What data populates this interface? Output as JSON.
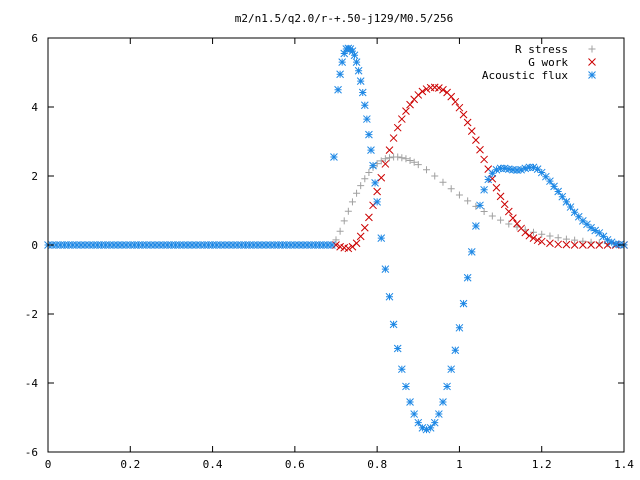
{
  "chart_data": {
    "type": "scatter",
    "title": "m2/n1.5/q2.0/r-+.50-j129/M0.5/256",
    "xlabel": "",
    "ylabel": "",
    "xlim": [
      0,
      1.4
    ],
    "ylim": [
      -6,
      6
    ],
    "xticks": [
      "0",
      "0.2",
      "0.4",
      "0.6",
      "0.8",
      "1",
      "1.2",
      "1.4"
    ],
    "yticks": [
      "6",
      "4",
      "2",
      "0",
      "-2",
      "-4",
      "-6"
    ],
    "grid": false,
    "legend_position": "top-right",
    "series": [
      {
        "name": "R stress",
        "marker": "+",
        "color": "#a0a0a0",
        "x": [
          0.7,
          0.71,
          0.72,
          0.73,
          0.74,
          0.75,
          0.76,
          0.77,
          0.78,
          0.79,
          0.8,
          0.81,
          0.82,
          0.83,
          0.84,
          0.85,
          0.86,
          0.87,
          0.88,
          0.89,
          0.9,
          0.92,
          0.94,
          0.96,
          0.98,
          1.0,
          1.02,
          1.04,
          1.06,
          1.08,
          1.1,
          1.12,
          1.14,
          1.16,
          1.18,
          1.2,
          1.22,
          1.24,
          1.26,
          1.28,
          1.3,
          1.32,
          1.34,
          1.36,
          1.38,
          1.4
        ],
        "y": [
          0.15,
          0.4,
          0.7,
          0.98,
          1.25,
          1.5,
          1.72,
          1.92,
          2.1,
          2.25,
          2.36,
          2.44,
          2.5,
          2.53,
          2.55,
          2.55,
          2.53,
          2.5,
          2.45,
          2.4,
          2.33,
          2.18,
          2.0,
          1.82,
          1.63,
          1.45,
          1.28,
          1.12,
          0.97,
          0.84,
          0.72,
          0.61,
          0.52,
          0.44,
          0.37,
          0.31,
          0.26,
          0.21,
          0.17,
          0.14,
          0.11,
          0.08,
          0.06,
          0.04,
          0.02,
          0.01
        ]
      },
      {
        "name": "G work",
        "marker": "x",
        "color": "#cc0000",
        "x": [
          0.7,
          0.71,
          0.72,
          0.73,
          0.74,
          0.75,
          0.76,
          0.77,
          0.78,
          0.79,
          0.8,
          0.81,
          0.82,
          0.83,
          0.84,
          0.85,
          0.86,
          0.87,
          0.88,
          0.89,
          0.9,
          0.91,
          0.92,
          0.93,
          0.94,
          0.95,
          0.96,
          0.97,
          0.98,
          0.99,
          1.0,
          1.01,
          1.02,
          1.03,
          1.04,
          1.05,
          1.06,
          1.07,
          1.08,
          1.09,
          1.1,
          1.11,
          1.12,
          1.13,
          1.14,
          1.15,
          1.16,
          1.17,
          1.18,
          1.19,
          1.2,
          1.22,
          1.24,
          1.26,
          1.28,
          1.3,
          1.32,
          1.34,
          1.36,
          1.38,
          1.4
        ],
        "y": [
          0.0,
          -0.05,
          -0.08,
          -0.1,
          -0.05,
          0.05,
          0.25,
          0.5,
          0.8,
          1.15,
          1.55,
          1.95,
          2.35,
          2.75,
          3.1,
          3.4,
          3.65,
          3.88,
          4.07,
          4.22,
          4.35,
          4.45,
          4.52,
          4.56,
          4.57,
          4.55,
          4.5,
          4.42,
          4.3,
          4.15,
          3.98,
          3.78,
          3.55,
          3.3,
          3.04,
          2.76,
          2.48,
          2.2,
          1.92,
          1.66,
          1.41,
          1.18,
          0.97,
          0.78,
          0.62,
          0.48,
          0.36,
          0.27,
          0.2,
          0.14,
          0.1,
          0.05,
          0.02,
          0.01,
          0.0,
          0.0,
          0.0,
          0.0,
          0.0,
          0.0,
          0.0
        ]
      },
      {
        "name": "Acoustic flux",
        "marker": "*",
        "color": "#1e88e5",
        "x": [
          0.0,
          0.01,
          0.02,
          0.03,
          0.04,
          0.05,
          0.06,
          0.07,
          0.08,
          0.09,
          0.1,
          0.11,
          0.12,
          0.13,
          0.14,
          0.15,
          0.16,
          0.17,
          0.18,
          0.19,
          0.2,
          0.21,
          0.22,
          0.23,
          0.24,
          0.25,
          0.26,
          0.27,
          0.28,
          0.29,
          0.3,
          0.31,
          0.32,
          0.33,
          0.34,
          0.35,
          0.36,
          0.37,
          0.38,
          0.39,
          0.4,
          0.41,
          0.42,
          0.43,
          0.44,
          0.45,
          0.46,
          0.47,
          0.48,
          0.49,
          0.5,
          0.51,
          0.52,
          0.53,
          0.54,
          0.55,
          0.56,
          0.57,
          0.58,
          0.59,
          0.6,
          0.61,
          0.62,
          0.63,
          0.64,
          0.65,
          0.66,
          0.67,
          0.68,
          0.69,
          0.695,
          0.705,
          0.71,
          0.715,
          0.72,
          0.725,
          0.73,
          0.735,
          0.74,
          0.745,
          0.75,
          0.755,
          0.76,
          0.765,
          0.77,
          0.775,
          0.78,
          0.785,
          0.79,
          0.795,
          0.8,
          0.81,
          0.82,
          0.83,
          0.84,
          0.85,
          0.86,
          0.87,
          0.88,
          0.89,
          0.9,
          0.91,
          0.92,
          0.93,
          0.94,
          0.95,
          0.96,
          0.97,
          0.98,
          0.99,
          1.0,
          1.01,
          1.02,
          1.03,
          1.04,
          1.05,
          1.06,
          1.07,
          1.08,
          1.09,
          1.1,
          1.11,
          1.12,
          1.13,
          1.14,
          1.15,
          1.16,
          1.17,
          1.18,
          1.19,
          1.2,
          1.21,
          1.22,
          1.23,
          1.24,
          1.25,
          1.26,
          1.27,
          1.28,
          1.29,
          1.3,
          1.31,
          1.32,
          1.33,
          1.34,
          1.35,
          1.36,
          1.37,
          1.38,
          1.39,
          1.4
        ],
        "y": [
          0,
          0,
          0,
          0,
          0,
          0,
          0,
          0,
          0,
          0,
          0,
          0,
          0,
          0,
          0,
          0,
          0,
          0,
          0,
          0,
          0,
          0,
          0,
          0,
          0,
          0,
          0,
          0,
          0,
          0,
          0,
          0,
          0,
          0,
          0,
          0,
          0,
          0,
          0,
          0,
          0,
          0,
          0,
          0,
          0,
          0,
          0,
          0,
          0,
          0,
          0,
          0,
          0,
          0,
          0,
          0,
          0,
          0,
          0,
          0,
          0,
          0,
          0,
          0,
          0,
          0,
          0,
          0,
          0,
          0,
          2.55,
          4.5,
          4.95,
          5.3,
          5.55,
          5.68,
          5.7,
          5.68,
          5.62,
          5.5,
          5.3,
          5.05,
          4.75,
          4.42,
          4.05,
          3.65,
          3.2,
          2.75,
          2.3,
          1.8,
          1.25,
          0.2,
          -0.7,
          -1.5,
          -2.3,
          -3.0,
          -3.6,
          -4.1,
          -4.55,
          -4.9,
          -5.15,
          -5.3,
          -5.35,
          -5.3,
          -5.15,
          -4.9,
          -4.55,
          -4.1,
          -3.6,
          -3.05,
          -2.4,
          -1.7,
          -0.95,
          -0.2,
          0.55,
          1.15,
          1.6,
          1.9,
          2.08,
          2.18,
          2.22,
          2.22,
          2.2,
          2.18,
          2.17,
          2.18,
          2.22,
          2.25,
          2.25,
          2.2,
          2.1,
          1.98,
          1.85,
          1.7,
          1.55,
          1.4,
          1.25,
          1.1,
          0.95,
          0.82,
          0.7,
          0.6,
          0.5,
          0.42,
          0.35,
          0.25,
          0.15,
          0.08,
          0.03,
          0.01,
          0.0
        ]
      }
    ]
  }
}
